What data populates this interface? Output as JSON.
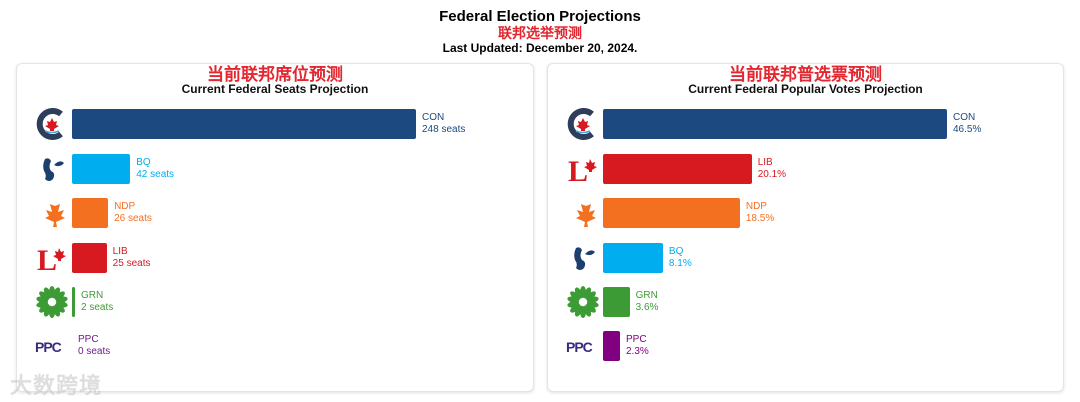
{
  "header": {
    "title": "Federal Election Projections",
    "subtitle_zh": "联邦选举预测",
    "updated": "Last Updated: December 20, 2024."
  },
  "watermark": "大数跨境",
  "chart_data": [
    {
      "type": "bar",
      "title_zh": "当前联邦席位预测",
      "title": "Current Federal Seats Projection",
      "unit": "seats",
      "categories": [
        "CON",
        "BQ",
        "NDP",
        "LIB",
        "GRN",
        "PPC"
      ],
      "values": [
        248,
        42,
        26,
        25,
        2,
        0
      ],
      "labels": [
        "248 seats",
        "42 seats",
        "26 seats",
        "25 seats",
        "2 seats",
        "0 seats"
      ],
      "colors": [
        "#1c4a80",
        "#00aeef",
        "#f37021",
        "#d71920",
        "#3d9b35",
        "#6b1d8a"
      ]
    },
    {
      "type": "bar",
      "title_zh": "当前联邦普选票预测",
      "title": "Current Federal Popular Votes Projection",
      "unit": "%",
      "categories": [
        "CON",
        "LIB",
        "NDP",
        "BQ",
        "GRN",
        "PPC"
      ],
      "values": [
        46.5,
        20.1,
        18.5,
        8.1,
        3.6,
        2.3
      ],
      "labels": [
        "46.5%",
        "20.1%",
        "18.5%",
        "8.1%",
        "3.6%",
        "2.3%"
      ],
      "colors": [
        "#1c4a80",
        "#d71920",
        "#f37021",
        "#00aeef",
        "#3d9b35",
        "#800080"
      ]
    }
  ]
}
